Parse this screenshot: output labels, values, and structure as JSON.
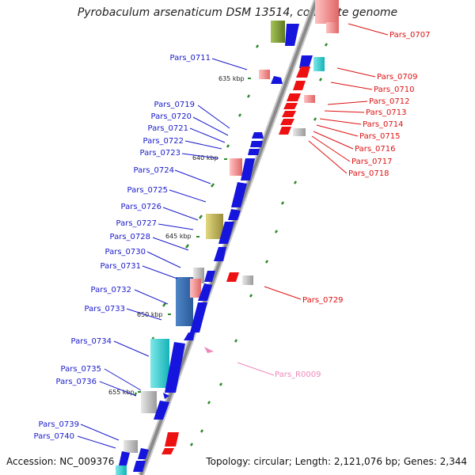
{
  "title": "Pyrobaculum arsenaticum DSM 13514, complete genome",
  "accession": "Accession: NC_009376",
  "summary": "Topology: circular; Length: 2,121,076 bp; Genes: 2,344",
  "colors": {
    "backbone": "#8a8a8a",
    "forward_label": "#1a1acc",
    "reverse_label": "#dd1111",
    "rna_label": "#ee88bb",
    "gc_tick": "#2a8a2a"
  },
  "kbp_marks": [
    {
      "label": "635 kbp"
    },
    {
      "label": "640 kbp"
    },
    {
      "label": "645 kbp"
    },
    {
      "label": "650 kbp"
    },
    {
      "label": "655 kbp"
    }
  ],
  "forward_genes": [
    "Pars_0711",
    "Pars_0719",
    "Pars_0720",
    "Pars_0721",
    "Pars_0722",
    "Pars_0723",
    "Pars_0724",
    "Pars_0725",
    "Pars_0726",
    "Pars_0727",
    "Pars_0728",
    "Pars_0730",
    "Pars_0731",
    "Pars_0732",
    "Pars_0733",
    "Pars_0734",
    "Pars_0735",
    "Pars_0736",
    "Pars_0739",
    "Pars_0740"
  ],
  "reverse_genes": [
    "Pars_0707",
    "Pars_0709",
    "Pars_0710",
    "Pars_0712",
    "Pars_0713",
    "Pars_0714",
    "Pars_0715",
    "Pars_0716",
    "Pars_0717",
    "Pars_0718",
    "Pars_0729"
  ],
  "rna_genes": [
    "Pars_R0009"
  ]
}
